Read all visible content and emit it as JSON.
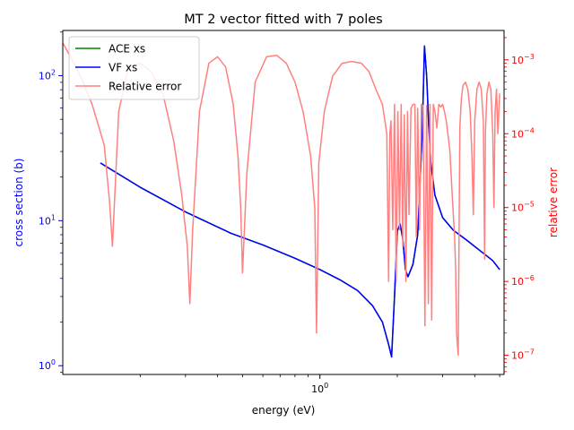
{
  "chart_data": {
    "type": "line",
    "title": "MT 2 vector fitted with 7 poles",
    "xlabel": "energy (eV)",
    "ylabel": "cross section (b)",
    "y2label": "relative error",
    "xscale": "log",
    "yscale": "log",
    "y2scale": "log",
    "xlim": [
      0.1,
      5.2
    ],
    "ylim": [
      0.87,
      205
    ],
    "y2lim": [
      5.5e-08,
      0.0025
    ],
    "x_ticks": [
      {
        "value": 1,
        "label": "10^0"
      }
    ],
    "y_ticks": [
      {
        "value": 1,
        "label": "10^0"
      },
      {
        "value": 10,
        "label": "10^1"
      },
      {
        "value": 100,
        "label": "10^2"
      }
    ],
    "y2_ticks": [
      {
        "value": 1e-07,
        "label": "10^-7"
      },
      {
        "value": 1e-06,
        "label": "10^-6"
      },
      {
        "value": 1e-05,
        "label": "10^-5"
      },
      {
        "value": 0.0001,
        "label": "10^-4"
      },
      {
        "value": 0.001,
        "label": "10^-3"
      }
    ],
    "legend_position": "top-left",
    "grid": false,
    "colors": {
      "ace": "#008000",
      "vf": "#0000ff",
      "error": "#ff8080",
      "left_axis": "#0000ff",
      "right_axis": "#ff0000"
    },
    "series": [
      {
        "name": "ACE xs",
        "axis": "left",
        "x": [
          0.14,
          0.2,
          0.3,
          0.45,
          0.6,
          0.8,
          1.0,
          1.2,
          1.4,
          1.6,
          1.75,
          1.85,
          1.9,
          1.95,
          2.0,
          2.05,
          2.1,
          2.15,
          2.2,
          2.3,
          2.4,
          2.5,
          2.55,
          2.6,
          2.65,
          2.7,
          2.8,
          3.0,
          3.3,
          3.7,
          4.2,
          4.7,
          5.0
        ],
        "y": [
          25,
          17,
          11.5,
          8.2,
          6.8,
          5.5,
          4.6,
          3.9,
          3.3,
          2.6,
          2.0,
          1.4,
          1.15,
          3.0,
          8.5,
          9.5,
          7.5,
          4.6,
          4.1,
          5.0,
          8.0,
          40,
          160,
          100,
          45,
          25,
          15,
          10.5,
          8.6,
          7.4,
          6.2,
          5.3,
          4.6
        ]
      },
      {
        "name": "VF xs",
        "axis": "left",
        "x": [
          0.14,
          0.2,
          0.3,
          0.45,
          0.6,
          0.8,
          1.0,
          1.2,
          1.4,
          1.6,
          1.75,
          1.85,
          1.9,
          1.95,
          2.0,
          2.05,
          2.1,
          2.15,
          2.2,
          2.3,
          2.4,
          2.5,
          2.55,
          2.6,
          2.65,
          2.7,
          2.8,
          3.0,
          3.3,
          3.7,
          4.2,
          4.7,
          5.0
        ],
        "y": [
          25,
          17,
          11.5,
          8.2,
          6.8,
          5.5,
          4.6,
          3.9,
          3.3,
          2.6,
          2.0,
          1.4,
          1.15,
          3.0,
          8.5,
          9.5,
          7.5,
          4.6,
          4.1,
          5.0,
          8.0,
          40,
          160,
          100,
          45,
          25,
          15,
          10.5,
          8.6,
          7.4,
          6.2,
          5.3,
          4.6
        ]
      },
      {
        "name": "Relative error",
        "axis": "right",
        "x": [
          0.1,
          0.115,
          0.13,
          0.145,
          0.152,
          0.156,
          0.165,
          0.18,
          0.2,
          0.22,
          0.245,
          0.27,
          0.29,
          0.305,
          0.312,
          0.32,
          0.34,
          0.37,
          0.4,
          0.43,
          0.46,
          0.48,
          0.492,
          0.5,
          0.52,
          0.56,
          0.62,
          0.68,
          0.74,
          0.8,
          0.86,
          0.92,
          0.955,
          0.97,
          0.99,
          1.04,
          1.12,
          1.22,
          1.33,
          1.45,
          1.55,
          1.65,
          1.75,
          1.82,
          1.85,
          1.87,
          1.89,
          1.92,
          1.95,
          1.98,
          2.01,
          2.04,
          2.07,
          2.1,
          2.13,
          2.16,
          2.19,
          2.22,
          2.26,
          2.3,
          2.34,
          2.37,
          2.4,
          2.44,
          2.48,
          2.52,
          2.56,
          2.6,
          2.64,
          2.68,
          2.72,
          2.76,
          2.8,
          2.85,
          2.9,
          2.95,
          3.0,
          3.05,
          3.1,
          3.2,
          3.28,
          3.34,
          3.37,
          3.4,
          3.45,
          3.5,
          3.55,
          3.6,
          3.68,
          3.76,
          3.84,
          3.9,
          3.95,
          4.0,
          4.08,
          4.16,
          4.24,
          4.32,
          4.37,
          4.4,
          4.46,
          4.54,
          4.62,
          4.7,
          4.75,
          4.8,
          4.86,
          4.92,
          5.0
        ],
        "y": [
          0.0017,
          0.0007,
          0.00025,
          7e-05,
          1.2e-05,
          3e-06,
          0.0002,
          0.0008,
          0.0009,
          0.0007,
          0.00035,
          8e-05,
          1.5e-05,
          3e-06,
          5e-07,
          5e-06,
          0.0002,
          0.0009,
          0.0011,
          0.0008,
          0.00025,
          5e-05,
          1e-05,
          1.3e-06,
          3e-05,
          0.0005,
          0.0011,
          0.00115,
          0.0009,
          0.0005,
          0.0002,
          5e-05,
          1e-05,
          2e-07,
          4e-05,
          0.0002,
          0.0006,
          0.0009,
          0.00095,
          0.0009,
          0.0007,
          0.0004,
          0.00025,
          0.0001,
          1e-06,
          0.0001,
          0.00015,
          5e-06,
          0.00025,
          1e-06,
          0.0002,
          5e-06,
          0.00025,
          3e-06,
          0.00018,
          1e-06,
          0.0002,
          8e-06,
          0.00022,
          0.00025,
          0.00025,
          4e-06,
          0.00022,
          5e-06,
          0.00025,
          0.00024,
          2.5e-07,
          0.00024,
          5e-07,
          0.00025,
          3e-07,
          0.00025,
          0.0002,
          0.00012,
          0.00025,
          0.00023,
          0.00025,
          0.0002,
          0.00015,
          6e-05,
          1.2e-05,
          4e-06,
          1.5e-06,
          2e-07,
          1e-07,
          0.00012,
          0.0003,
          0.00045,
          0.0005,
          0.0004,
          0.0002,
          5e-05,
          8e-06,
          0.00015,
          0.0004,
          0.0005,
          0.0004,
          0.00015,
          2e-06,
          0.0001,
          0.00035,
          0.0005,
          0.0004,
          0.0001,
          1e-05,
          0.0002,
          0.0004,
          0.0001,
          0.00035
        ]
      }
    ]
  }
}
